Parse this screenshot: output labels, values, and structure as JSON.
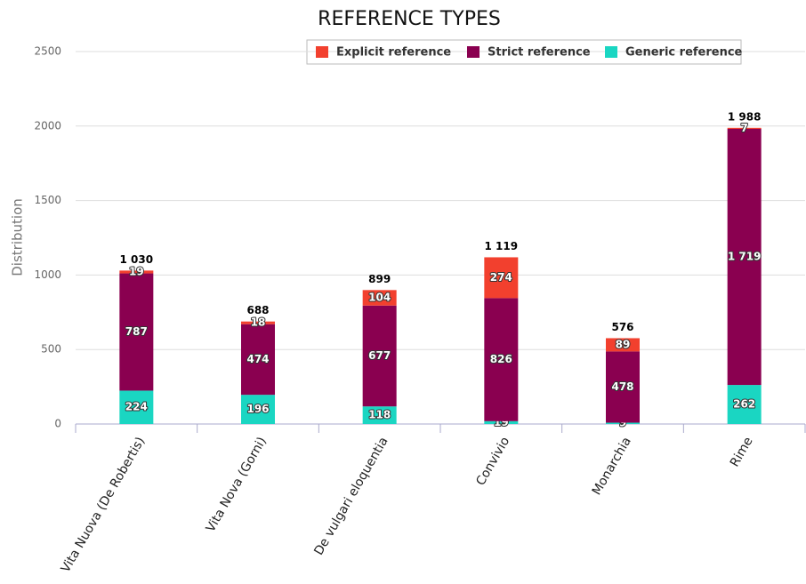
{
  "chart_data": {
    "type": "stacked_bar",
    "title": "REFERENCE TYPES",
    "y_label": "Distribution",
    "categories": [
      "Vita Nuova (De Robertis)",
      "Vita Nova (Gorni)",
      "De vulgari eloquentia",
      "Convivio",
      "Monarchia",
      "Rime"
    ],
    "series": [
      {
        "name": "Explicit reference",
        "color": "#f2402e",
        "values": [
          19,
          18,
          104,
          274,
          89,
          7
        ]
      },
      {
        "name": "Strict reference",
        "color": "#8a0050",
        "values": [
          787,
          474,
          677,
          826,
          478,
          1719
        ],
        "value_labels": [
          "787",
          "474",
          "677",
          "826",
          "478",
          "1 719"
        ]
      },
      {
        "name": "Generic reference",
        "color": "#1ad6c2",
        "values": [
          224,
          196,
          118,
          19,
          9,
          262
        ]
      }
    ],
    "totals": [
      1030,
      688,
      899,
      1119,
      576,
      1988
    ],
    "total_labels": [
      "1 030",
      "688",
      "899",
      "1 119",
      "576",
      "1 988"
    ],
    "ylim": [
      0,
      2500
    ],
    "yticks": [
      0,
      500,
      1000,
      1500,
      2000,
      2500
    ],
    "grid": true,
    "legend": "top"
  }
}
